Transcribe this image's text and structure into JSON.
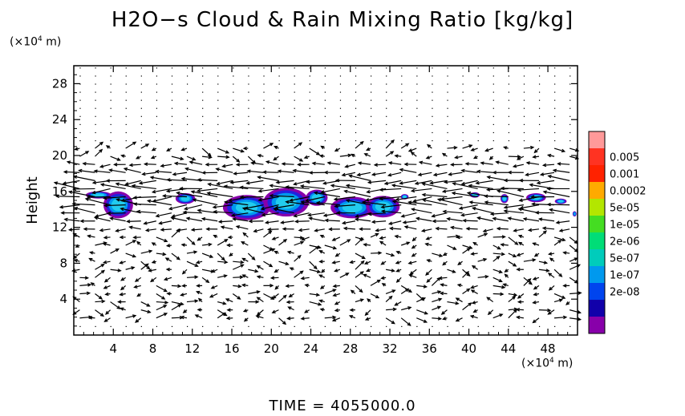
{
  "chart_data": {
    "type": "heatmap",
    "title": "H2O−s Cloud & Rain Mixing Ratio [kg/kg]",
    "ylabel": "Height",
    "y_unit": {
      "prefix": "(×10",
      "exp": "4",
      "suffix": " m)"
    },
    "x_unit": {
      "prefix": "(×10",
      "exp": "4",
      "suffix": " m)"
    },
    "xlim": [
      0,
      51
    ],
    "ylim": [
      0,
      30
    ],
    "x_ticks": [
      4,
      8,
      12,
      16,
      20,
      24,
      28,
      32,
      36,
      40,
      44,
      48
    ],
    "y_ticks": [
      4,
      8,
      12,
      16,
      20,
      24,
      28
    ],
    "colorbar": {
      "labels": [
        "0.005",
        "0.001",
        "0.0002",
        "5e-05",
        "1e-05",
        "2e-06",
        "5e-07",
        "1e-07",
        "2e-08"
      ],
      "colors": [
        "#ff9999",
        "#ff3322",
        "#ff2200",
        "#ffaa00",
        "#b3e600",
        "#44dd22",
        "#00dd77",
        "#00ccbb",
        "#0099ee",
        "#0044ee",
        "#1100aa",
        "#8800aa"
      ]
    },
    "wind_vectors": "shown",
    "cloud_regions": [
      {
        "x": 4.5,
        "y": 14.5,
        "rx": 1.5,
        "ry": 1.5
      },
      {
        "x": 2.5,
        "y": 15.6,
        "rx": 1.3,
        "ry": 0.4
      },
      {
        "x": 11.3,
        "y": 15.2,
        "rx": 1.0,
        "ry": 0.6
      },
      {
        "x": 17.5,
        "y": 14.2,
        "rx": 2.4,
        "ry": 1.4
      },
      {
        "x": 21.5,
        "y": 14.8,
        "rx": 2.3,
        "ry": 1.6
      },
      {
        "x": 24.6,
        "y": 15.3,
        "rx": 1.1,
        "ry": 0.9
      },
      {
        "x": 28.2,
        "y": 14.2,
        "rx": 2.2,
        "ry": 1.2
      },
      {
        "x": 31.3,
        "y": 14.3,
        "rx": 1.7,
        "ry": 1.2
      },
      {
        "x": 33.5,
        "y": 15.4,
        "rx": 0.4,
        "ry": 0.3
      },
      {
        "x": 40.6,
        "y": 15.6,
        "rx": 0.5,
        "ry": 0.3
      },
      {
        "x": 43.6,
        "y": 15.2,
        "rx": 0.4,
        "ry": 0.5
      },
      {
        "x": 46.8,
        "y": 15.3,
        "rx": 1.0,
        "ry": 0.5
      },
      {
        "x": 49.3,
        "y": 14.9,
        "rx": 0.6,
        "ry": 0.3
      },
      {
        "x": 50.7,
        "y": 13.5,
        "rx": 0.2,
        "ry": 0.3
      }
    ]
  },
  "footer": {
    "time_text": "TIME = 4055000.0"
  }
}
